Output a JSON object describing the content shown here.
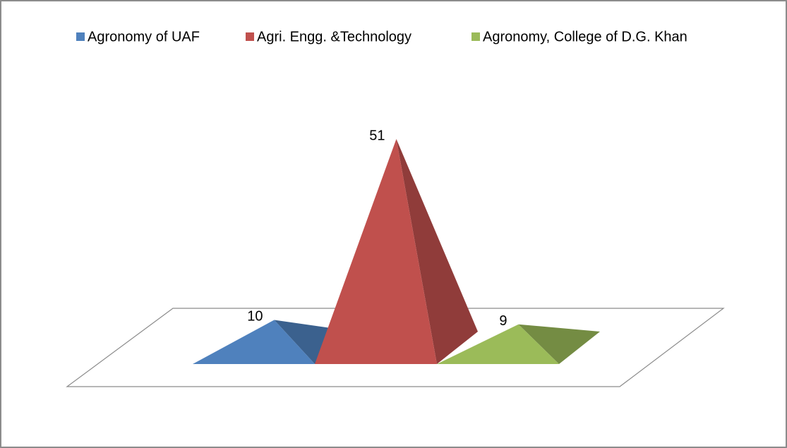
{
  "chart_data": {
    "type": "pyramid",
    "series": [
      {
        "name": "Agronomy of UAF",
        "color": "#4f81bd",
        "values": [
          10
        ]
      },
      {
        "name": "Agri. Engg. &Technology",
        "color": "#c0504d",
        "values": [
          51
        ]
      },
      {
        "name": "Agronomy, College of D.G. Khan",
        "color": "#9bbb59",
        "values": [
          9
        ]
      }
    ]
  }
}
